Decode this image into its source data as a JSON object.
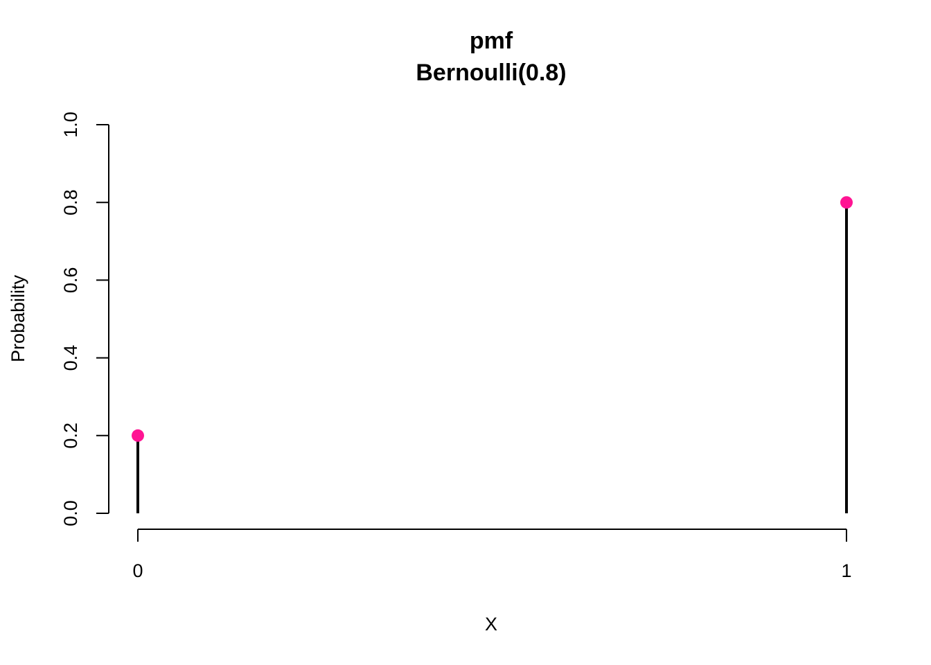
{
  "chart_data": {
    "type": "scatter",
    "title": "pmf",
    "subtitle": "Bernoulli(0.8)",
    "xlabel": "X",
    "ylabel": "Probability",
    "x": [
      0,
      1
    ],
    "x_tick_labels": [
      "0",
      "1"
    ],
    "y": [
      0.2,
      0.8
    ],
    "ylim": [
      0,
      1
    ],
    "y_ticks": [
      0.0,
      0.2,
      0.4,
      0.6,
      0.8,
      1.0
    ],
    "y_tick_labels": [
      "0.0",
      "0.2",
      "0.4",
      "0.6",
      "0.8",
      "1.0"
    ],
    "marker_color": "#ff1493",
    "stem_color": "#000000",
    "grid": false,
    "legend": "none"
  }
}
